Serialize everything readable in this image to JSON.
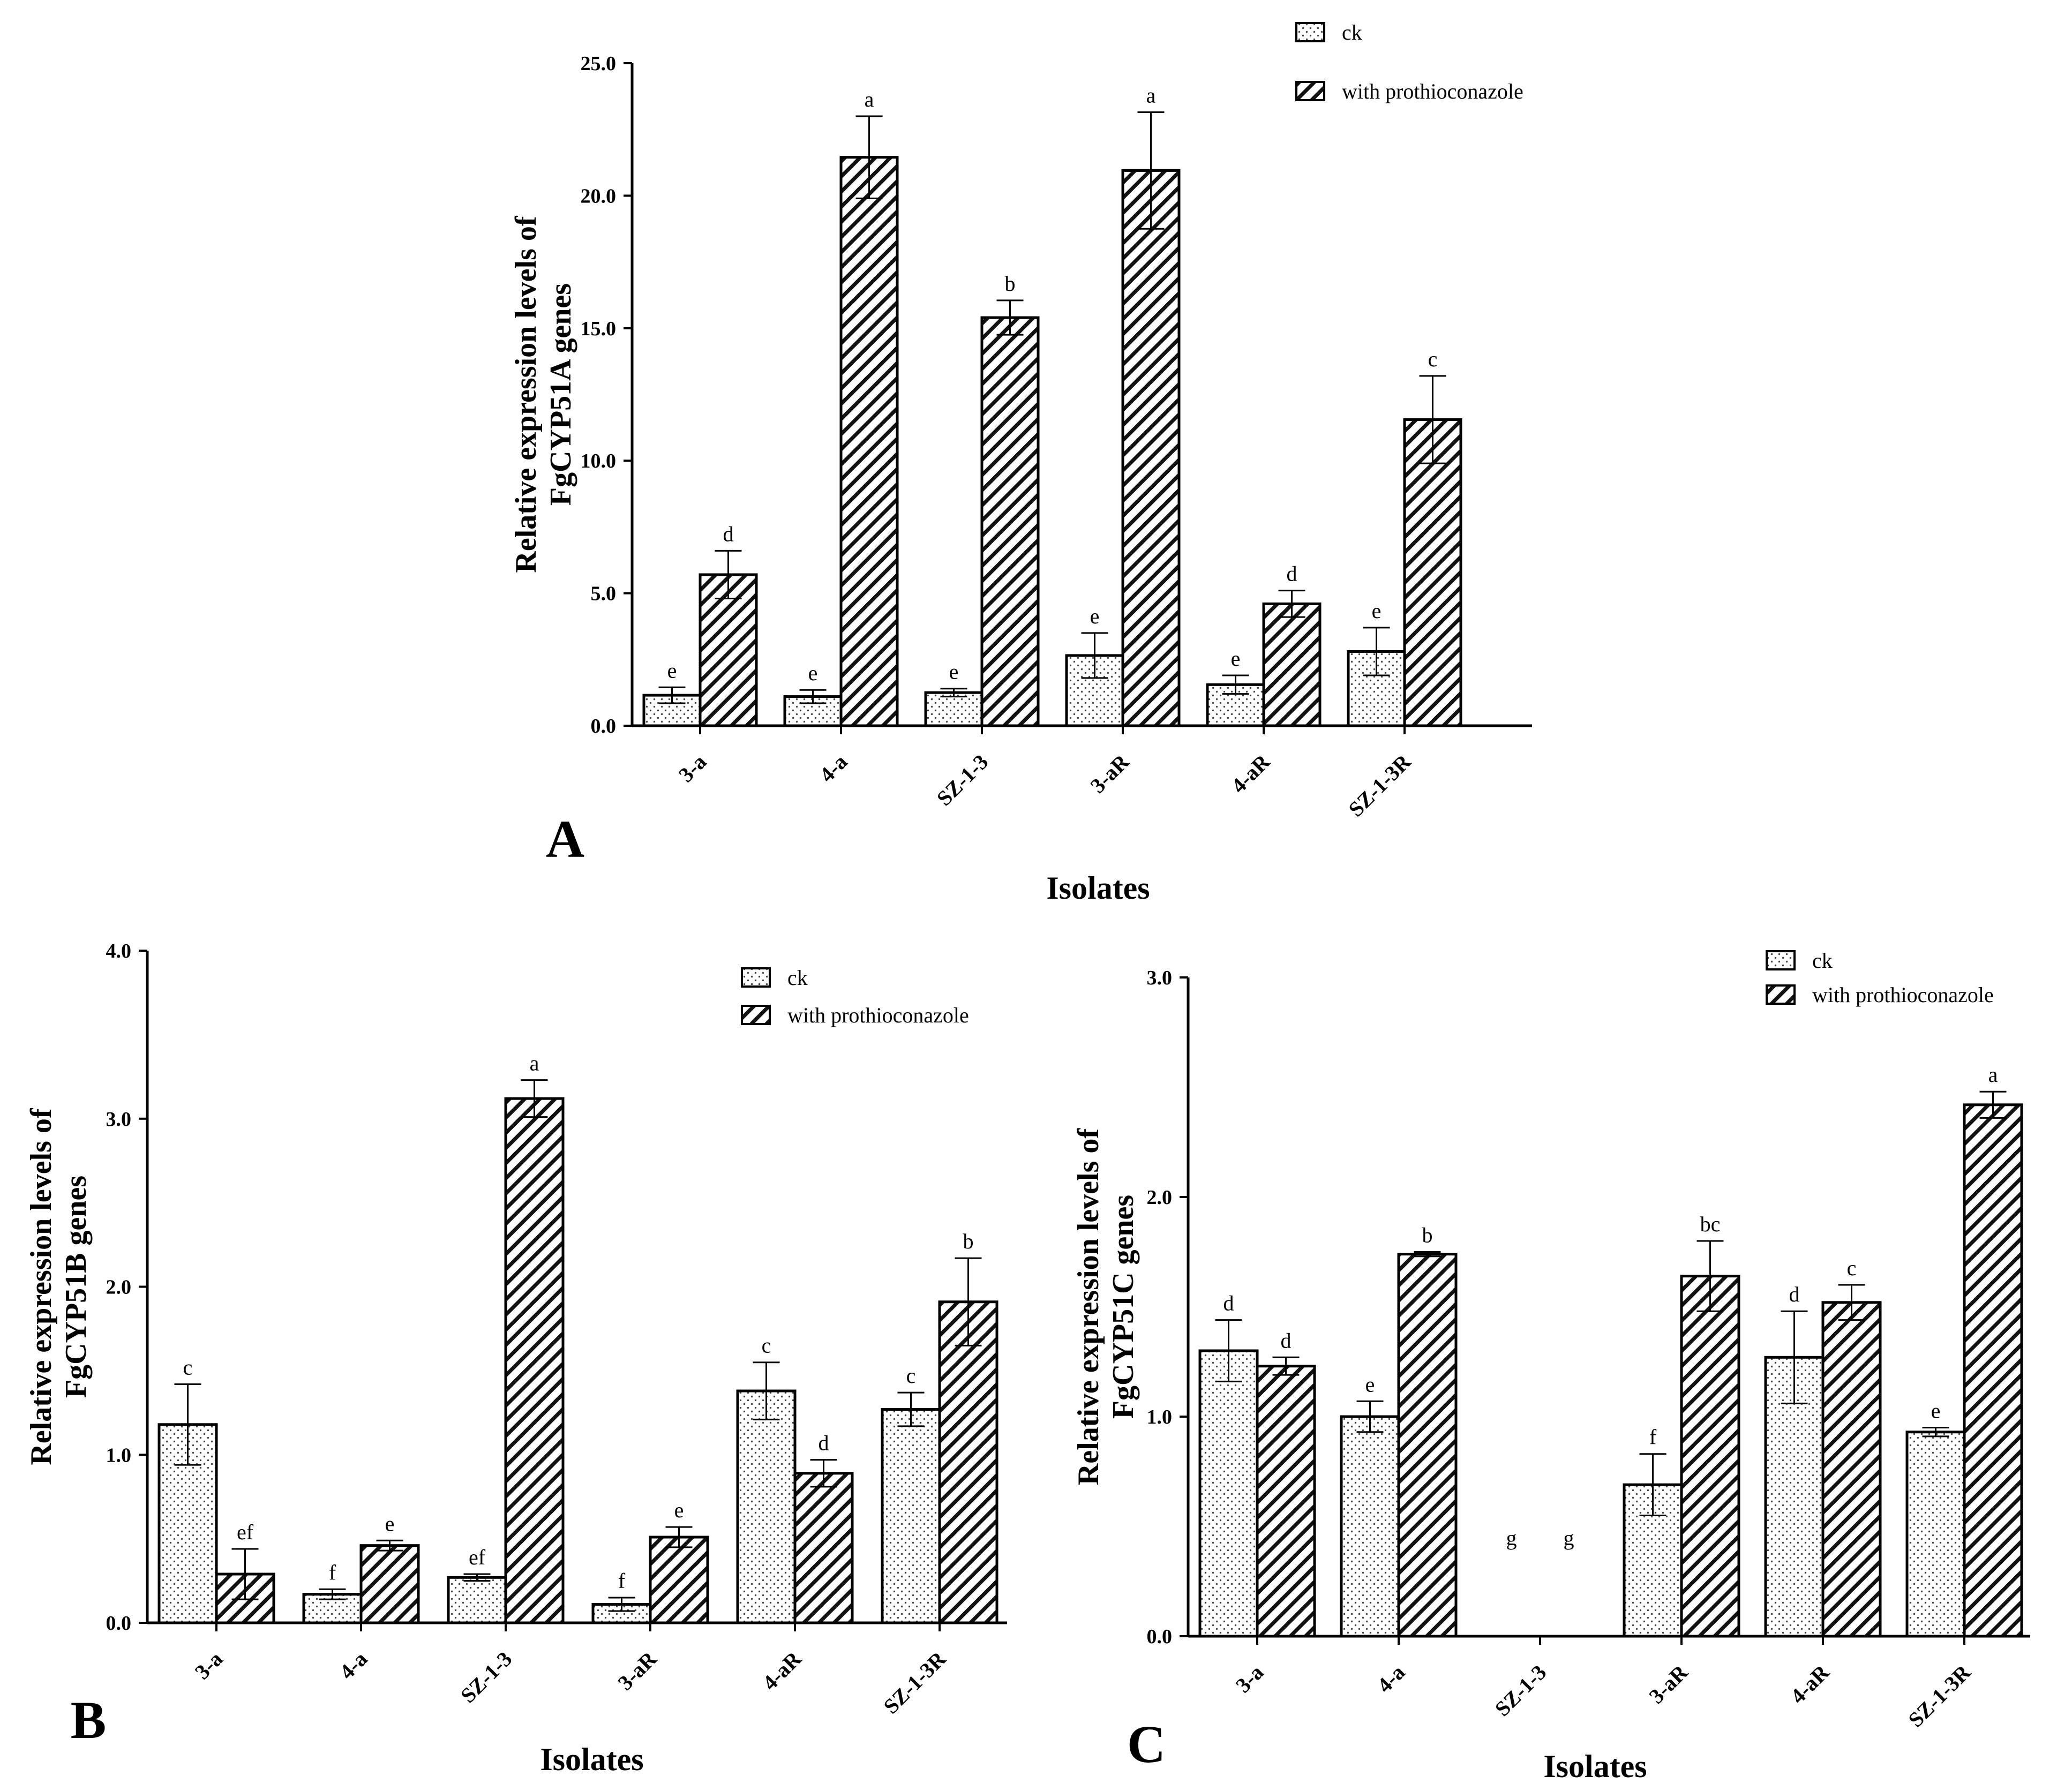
{
  "chart_data": [
    {
      "type": "bar",
      "panel_label": "A",
      "ylabel_line1": "Relative expression levels of",
      "ylabel_line2": "FgCYP51A  genes",
      "xlabel": "Isolates",
      "ylim": [
        0,
        25
      ],
      "yticks": [
        0,
        5,
        10,
        15,
        20,
        25
      ],
      "ytick_labels": [
        "0.0",
        "5.0",
        "10.0",
        "15.0",
        "20.0",
        "25.0"
      ],
      "categories": [
        "3-a",
        "4-a",
        "SZ-1-3",
        "3-aR",
        "4-aR",
        "SZ-1-3R"
      ],
      "legend_position": "top-right",
      "series": [
        {
          "name": "ck",
          "pattern": "dots",
          "values": [
            1.15,
            1.1,
            1.25,
            2.65,
            1.55,
            2.8
          ],
          "errors": [
            0.3,
            0.25,
            0.15,
            0.85,
            0.35,
            0.9
          ],
          "labels": [
            "e",
            "e",
            "e",
            "e",
            "e",
            "e"
          ]
        },
        {
          "name": "with prothioconazole",
          "pattern": "hatch",
          "values": [
            5.7,
            21.45,
            15.4,
            20.95,
            4.6,
            11.55
          ],
          "errors": [
            0.9,
            1.55,
            0.65,
            2.2,
            0.5,
            1.65
          ],
          "labels": [
            "d",
            "a",
            "b",
            "a",
            "d",
            "c"
          ]
        }
      ]
    },
    {
      "type": "bar",
      "panel_label": "B",
      "ylabel_line1": "Relative expression levels of",
      "ylabel_line2": "FgCYP51B  genes",
      "xlabel": "Isolates",
      "ylim": [
        0,
        4
      ],
      "yticks": [
        0,
        1,
        2,
        3,
        4
      ],
      "ytick_labels": [
        "0.0",
        "1.0",
        "2.0",
        "3.0",
        "4.0"
      ],
      "categories": [
        "3-a",
        "4-a",
        "SZ-1-3",
        "3-aR",
        "4-aR",
        "SZ-1-3R"
      ],
      "legend_position": "top-right",
      "series": [
        {
          "name": "ck",
          "pattern": "dots",
          "values": [
            1.18,
            0.17,
            0.27,
            0.11,
            1.38,
            1.27
          ],
          "errors": [
            0.24,
            0.03,
            0.02,
            0.04,
            0.17,
            0.1
          ],
          "labels": [
            "c",
            "f",
            "ef",
            "f",
            "c",
            "c"
          ]
        },
        {
          "name": "with prothioconazole",
          "pattern": "hatch",
          "values": [
            0.29,
            0.46,
            3.12,
            0.51,
            0.89,
            1.91
          ],
          "errors": [
            0.15,
            0.03,
            0.11,
            0.06,
            0.08,
            0.26
          ],
          "labels": [
            "ef",
            "e",
            "a",
            "e",
            "d",
            "b"
          ]
        }
      ]
    },
    {
      "type": "bar",
      "panel_label": "C",
      "ylabel_line1": "Relative expression levels of",
      "ylabel_line2": "FgCYP51C genes",
      "xlabel": "Isolates",
      "ylim": [
        0,
        3
      ],
      "yticks": [
        0,
        1,
        2,
        3
      ],
      "ytick_labels": [
        "0.0",
        "1.0",
        "2.0",
        "3.0"
      ],
      "categories": [
        "3-a",
        "4-a",
        "SZ-1-3",
        "3-aR",
        "4-aR",
        "SZ-1-3R"
      ],
      "legend_position": "top-right",
      "series": [
        {
          "name": "ck",
          "pattern": "dots",
          "values": [
            1.3,
            1.0,
            0,
            0.69,
            1.27,
            0.93
          ],
          "errors": [
            0.14,
            0.07,
            0,
            0.14,
            0.21,
            0.02
          ],
          "labels": [
            "d",
            "e",
            "g",
            "f",
            "d",
            "e"
          ]
        },
        {
          "name": "with prothioconazole",
          "pattern": "hatch",
          "values": [
            1.23,
            1.74,
            0,
            1.64,
            1.52,
            2.42
          ],
          "errors": [
            0.04,
            0.01,
            0,
            0.16,
            0.08,
            0.06
          ],
          "labels": [
            "d",
            "b",
            "g",
            "bc",
            "c",
            "a"
          ]
        }
      ]
    }
  ]
}
